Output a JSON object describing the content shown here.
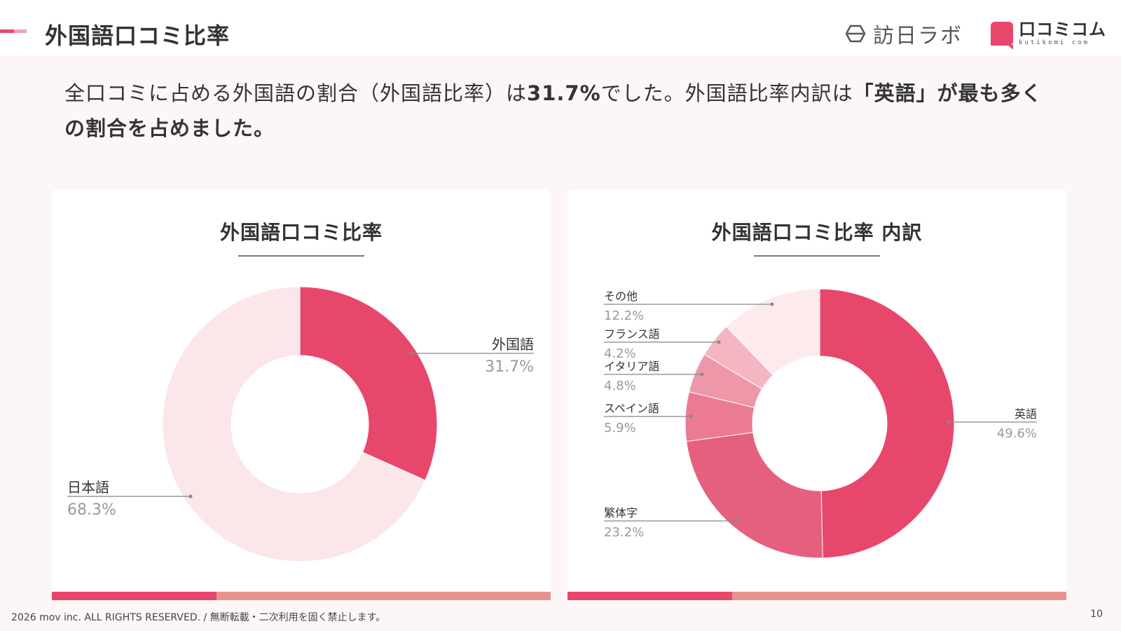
{
  "header": {
    "title": "外国語口コミ比率",
    "logo_houjin": "訪日ラボ",
    "logo_kuchikomi": "口コミコム",
    "logo_kuchikomi_sub": "kutikomi com"
  },
  "summary": {
    "part1": "全口コミに占める外国語の割合（外国語比率）は",
    "highlight_rate": "31.7%",
    "part2": "でした。外国語比率内訳は",
    "highlight_lang": "「英語」",
    "part3": "が最も多くの割合を占めました。"
  },
  "colors": {
    "accent": "#e8476c",
    "light_pink": "#fbe6ea",
    "bar_secondary": "#e9918f",
    "background": "#fdf6f7"
  },
  "chart_data": [
    {
      "type": "pie",
      "title": "外国語口コミ比率",
      "donut": true,
      "slices": [
        {
          "label": "外国語",
          "value": 31.7,
          "value_label": "31.7%",
          "color": "#e8476c"
        },
        {
          "label": "日本語",
          "value": 68.3,
          "value_label": "68.3%",
          "color": "#fbe6ea"
        }
      ]
    },
    {
      "type": "pie",
      "title": "外国語口コミ比率 内訳",
      "donut": true,
      "slices": [
        {
          "label": "英語",
          "value": 49.6,
          "value_label": "49.6%",
          "color": "#e8476c"
        },
        {
          "label": "繁体字",
          "value": 23.2,
          "value_label": "23.2%",
          "color": "#e5607e"
        },
        {
          "label": "スペイン語",
          "value": 5.9,
          "value_label": "5.9%",
          "color": "#ea7b92"
        },
        {
          "label": "イタリア語",
          "value": 4.8,
          "value_label": "4.8%",
          "color": "#ee97a9"
        },
        {
          "label": "フランス語",
          "value": 4.2,
          "value_label": "4.2%",
          "color": "#f3b6c2"
        },
        {
          "label": "その他",
          "value": 12.2,
          "value_label": "12.2%",
          "color": "#fdebec"
        }
      ]
    }
  ],
  "footer": {
    "copyright": "2026 mov inc. ALL RIGHTS RESERVED. / 無断転載・二次利用を固く禁止します。",
    "page_number": "10"
  }
}
